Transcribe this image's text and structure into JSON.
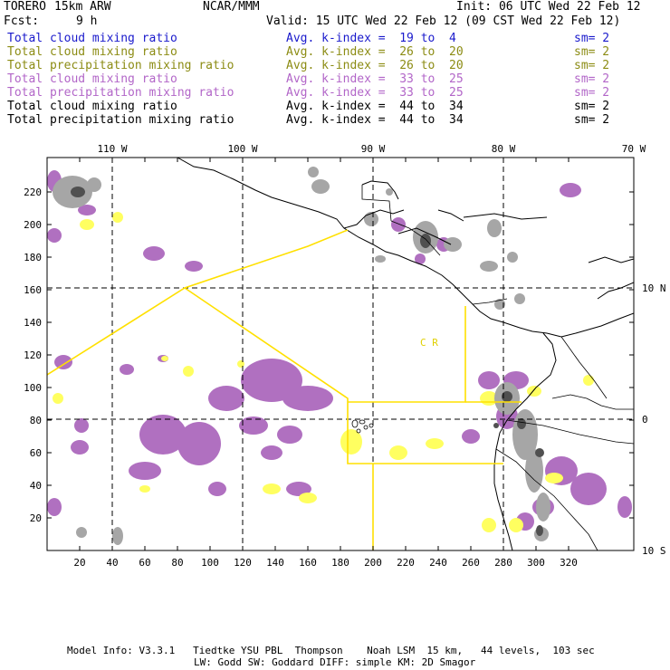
{
  "header": {
    "model": "TORERO",
    "resolution": "15km ARW",
    "institution": "NCAR/MMM",
    "init": "Init: 06 UTC Wed 22 Feb 12",
    "fcst_label": "Fcst:",
    "fcst_value": "9 h",
    "valid": "Valid: 15 UTC Wed 22 Feb 12 (09 CST Wed 22 Feb 12)"
  },
  "legend": [
    {
      "field": "Total cloud mixing ratio",
      "kindex": "Avg. k-index =  19 to  4",
      "sm": "sm= 2",
      "color": "#1a1acc"
    },
    {
      "field": "Total cloud mixing ratio",
      "kindex": "Avg. k-index =  26 to  20",
      "sm": "sm= 2",
      "color": "#8c8c14"
    },
    {
      "field": "Total precipitation mixing ratio",
      "kindex": "Avg. k-index =  26 to  20",
      "sm": "sm= 2",
      "color": "#8c8c14"
    },
    {
      "field": "Total cloud mixing ratio",
      "kindex": "Avg. k-index =  33 to  25",
      "sm": "sm= 2",
      "color": "#b266c8"
    },
    {
      "field": "Total precipitation mixing ratio",
      "kindex": "Avg. k-index =  33 to  25",
      "sm": "sm= 2",
      "color": "#b266c8"
    },
    {
      "field": "Total cloud mixing ratio",
      "kindex": "Avg. k-index =  44 to  34",
      "sm": "sm= 2",
      "color": "#000000"
    },
    {
      "field": "Total precipitation mixing ratio",
      "kindex": "Avg. k-index =  44 to  34",
      "sm": "sm= 2",
      "color": "#000000"
    }
  ],
  "map": {
    "bottom_ticks": [
      "20",
      "40",
      "60",
      "80",
      "100",
      "120",
      "140",
      "160",
      "180",
      "200",
      "220",
      "240",
      "260",
      "280",
      "300",
      "320"
    ],
    "left_ticks": [
      "20",
      "40",
      "60",
      "80",
      "100",
      "120",
      "140",
      "160",
      "180",
      "200",
      "220"
    ],
    "top_lon": [
      "110 W",
      "100 W",
      "90 W",
      "80 W",
      "70 W"
    ],
    "right_lat": [
      "10 N",
      "0",
      "10 S"
    ],
    "region_label": "C R",
    "colors": {
      "purple": "#b070c0",
      "yellow": "#ffff60",
      "gray": "#a6a6a6",
      "dark": "#505050",
      "border": "#ffe000"
    }
  },
  "footer": {
    "line1": "Model Info: V3.3.1   Tiedtke YSU PBL  Thompson    Noah LSM  15 km,   44 levels,  103 sec",
    "line2": "LW: Godd SW: Goddard DIFF: simple KM: 2D Smagor"
  }
}
